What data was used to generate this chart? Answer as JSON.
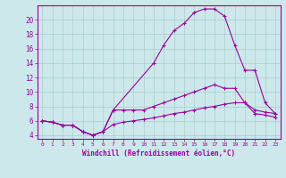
{
  "xlabel": "Windchill (Refroidissement éolien,°C)",
  "background_color": "#cce8ea",
  "line_color": "#990099",
  "grid_color": "#aacccc",
  "xlim": [
    -0.5,
    23.5
  ],
  "ylim": [
    3.5,
    22.0
  ],
  "xticks": [
    0,
    1,
    2,
    3,
    4,
    5,
    6,
    7,
    8,
    9,
    10,
    11,
    12,
    13,
    14,
    15,
    16,
    17,
    18,
    19,
    20,
    21,
    22,
    23
  ],
  "yticks": [
    4,
    6,
    8,
    10,
    12,
    14,
    16,
    18,
    20
  ],
  "line1_x": [
    0,
    1,
    2,
    3,
    4,
    5,
    6,
    7,
    11,
    12,
    13,
    14,
    15,
    16,
    17,
    18,
    19,
    20,
    21,
    22,
    23
  ],
  "line1_y": [
    6.0,
    5.8,
    5.4,
    5.4,
    4.5,
    4.0,
    4.5,
    7.5,
    14.0,
    16.5,
    18.5,
    19.5,
    21.0,
    21.5,
    21.5,
    20.5,
    16.5,
    13.0,
    13.0,
    8.5,
    7.0
  ],
  "line2_x": [
    0,
    1,
    2,
    3,
    4,
    5,
    6,
    7,
    8,
    9,
    10,
    11,
    12,
    13,
    14,
    15,
    16,
    17,
    18,
    19,
    20,
    21,
    22,
    23
  ],
  "line2_y": [
    6.0,
    5.8,
    5.4,
    5.4,
    4.5,
    4.0,
    4.5,
    7.5,
    7.5,
    7.5,
    7.5,
    8.0,
    8.5,
    9.0,
    9.5,
    10.0,
    10.5,
    11.0,
    10.5,
    10.5,
    8.5,
    7.0,
    6.8,
    6.5
  ],
  "line3_x": [
    0,
    1,
    2,
    3,
    4,
    5,
    6,
    7,
    8,
    9,
    10,
    11,
    12,
    13,
    14,
    15,
    16,
    17,
    18,
    19,
    20,
    21,
    22,
    23
  ],
  "line3_y": [
    6.0,
    5.8,
    5.4,
    5.4,
    4.5,
    4.0,
    4.5,
    5.5,
    5.8,
    6.0,
    6.2,
    6.4,
    6.7,
    7.0,
    7.2,
    7.5,
    7.8,
    8.0,
    8.3,
    8.5,
    8.5,
    7.5,
    7.2,
    7.0
  ]
}
